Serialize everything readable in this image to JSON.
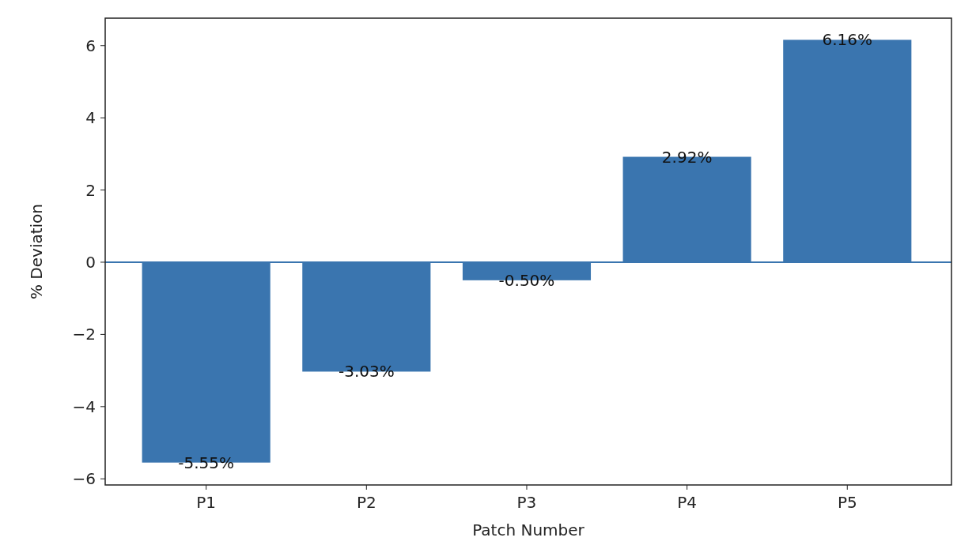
{
  "chart_data": {
    "type": "bar",
    "xlabel": "Patch Number",
    "ylabel": "% Deviation",
    "categories": [
      "P1",
      "P2",
      "P3",
      "P4",
      "P5"
    ],
    "values": [
      -5.55,
      -3.03,
      -0.5,
      2.92,
      6.16
    ],
    "value_labels": [
      "-5.55%",
      "-3.03%",
      "-0.50%",
      "2.92%",
      "6.16%"
    ],
    "color": "#3a75af",
    "ylim": [
      -6.17,
      6.76
    ],
    "yticks": [
      {
        "value": -6,
        "label": "−6"
      },
      {
        "value": -4,
        "label": "−4"
      },
      {
        "value": -2,
        "label": "−2"
      },
      0,
      2,
      4,
      6
    ],
    "ref_lines": [
      {
        "axis": "y",
        "value": 0,
        "color": "#3a75af"
      }
    ],
    "grid": false
  }
}
